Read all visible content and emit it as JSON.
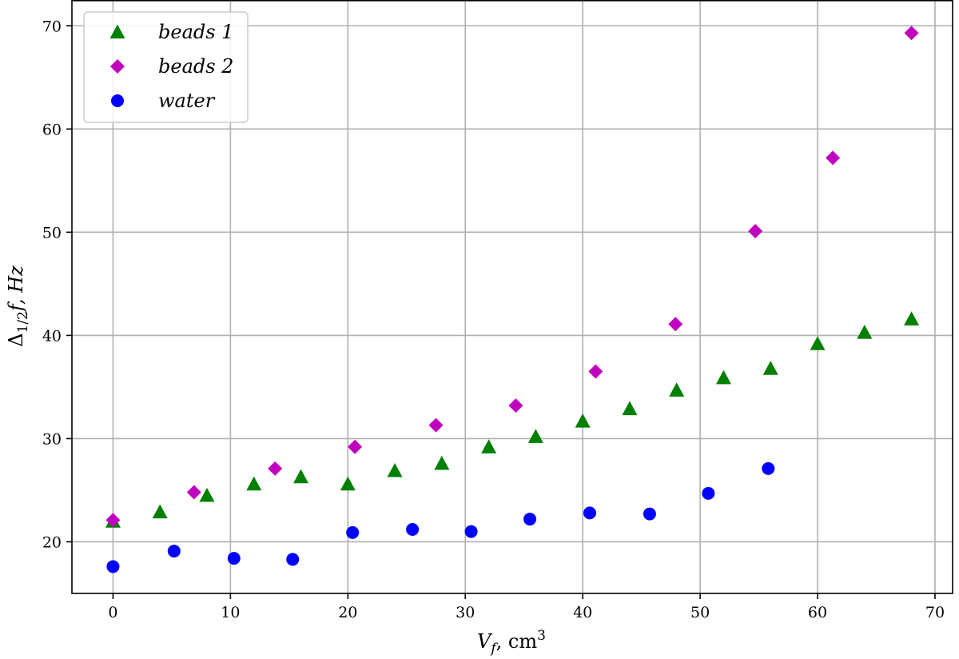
{
  "chart_data": {
    "type": "scatter",
    "xlabel_main": "V",
    "xlabel_sub": "f",
    "xlabel_unit": ",  cm",
    "xlabel_sup": "3",
    "ylabel_main": "Δ",
    "ylabel_sub": "1/2",
    "ylabel_rest": "f,  Hz",
    "xlim": [
      -3.5,
      71.5
    ],
    "ylim": [
      15.0,
      72.5
    ],
    "xticks": [
      0,
      10,
      20,
      30,
      40,
      50,
      60,
      70
    ],
    "yticks": [
      20,
      30,
      40,
      50,
      60,
      70
    ],
    "grid": true,
    "legend_position": "top-left",
    "series": [
      {
        "name": "beads 1",
        "marker": "triangle",
        "color": "#008000",
        "x": [
          0,
          4,
          8,
          12,
          16,
          20,
          24,
          28,
          32,
          36,
          40,
          44,
          48,
          52,
          56,
          60,
          64,
          68
        ],
        "y": [
          22.0,
          22.9,
          24.5,
          25.6,
          26.3,
          25.6,
          26.9,
          27.6,
          29.2,
          30.2,
          31.7,
          32.9,
          34.7,
          35.9,
          36.8,
          39.2,
          40.3,
          41.6
        ]
      },
      {
        "name": "beads 2",
        "marker": "diamond",
        "color": "#bf00bf",
        "x": [
          0,
          6.9,
          13.8,
          20.6,
          27.5,
          34.3,
          41.1,
          47.9,
          54.7,
          61.3,
          68.0
        ],
        "y": [
          22.1,
          24.8,
          27.1,
          29.2,
          31.3,
          33.2,
          36.5,
          41.1,
          50.1,
          57.2,
          69.3
        ]
      },
      {
        "name": "water",
        "marker": "circle",
        "color": "#0000ff",
        "x": [
          0,
          5.2,
          10.3,
          15.3,
          20.4,
          25.5,
          30.5,
          35.5,
          40.6,
          45.7,
          50.7,
          55.8
        ],
        "y": [
          17.6,
          19.1,
          18.4,
          18.3,
          20.9,
          21.2,
          21.0,
          22.2,
          22.8,
          22.7,
          24.7,
          27.1
        ]
      }
    ]
  }
}
